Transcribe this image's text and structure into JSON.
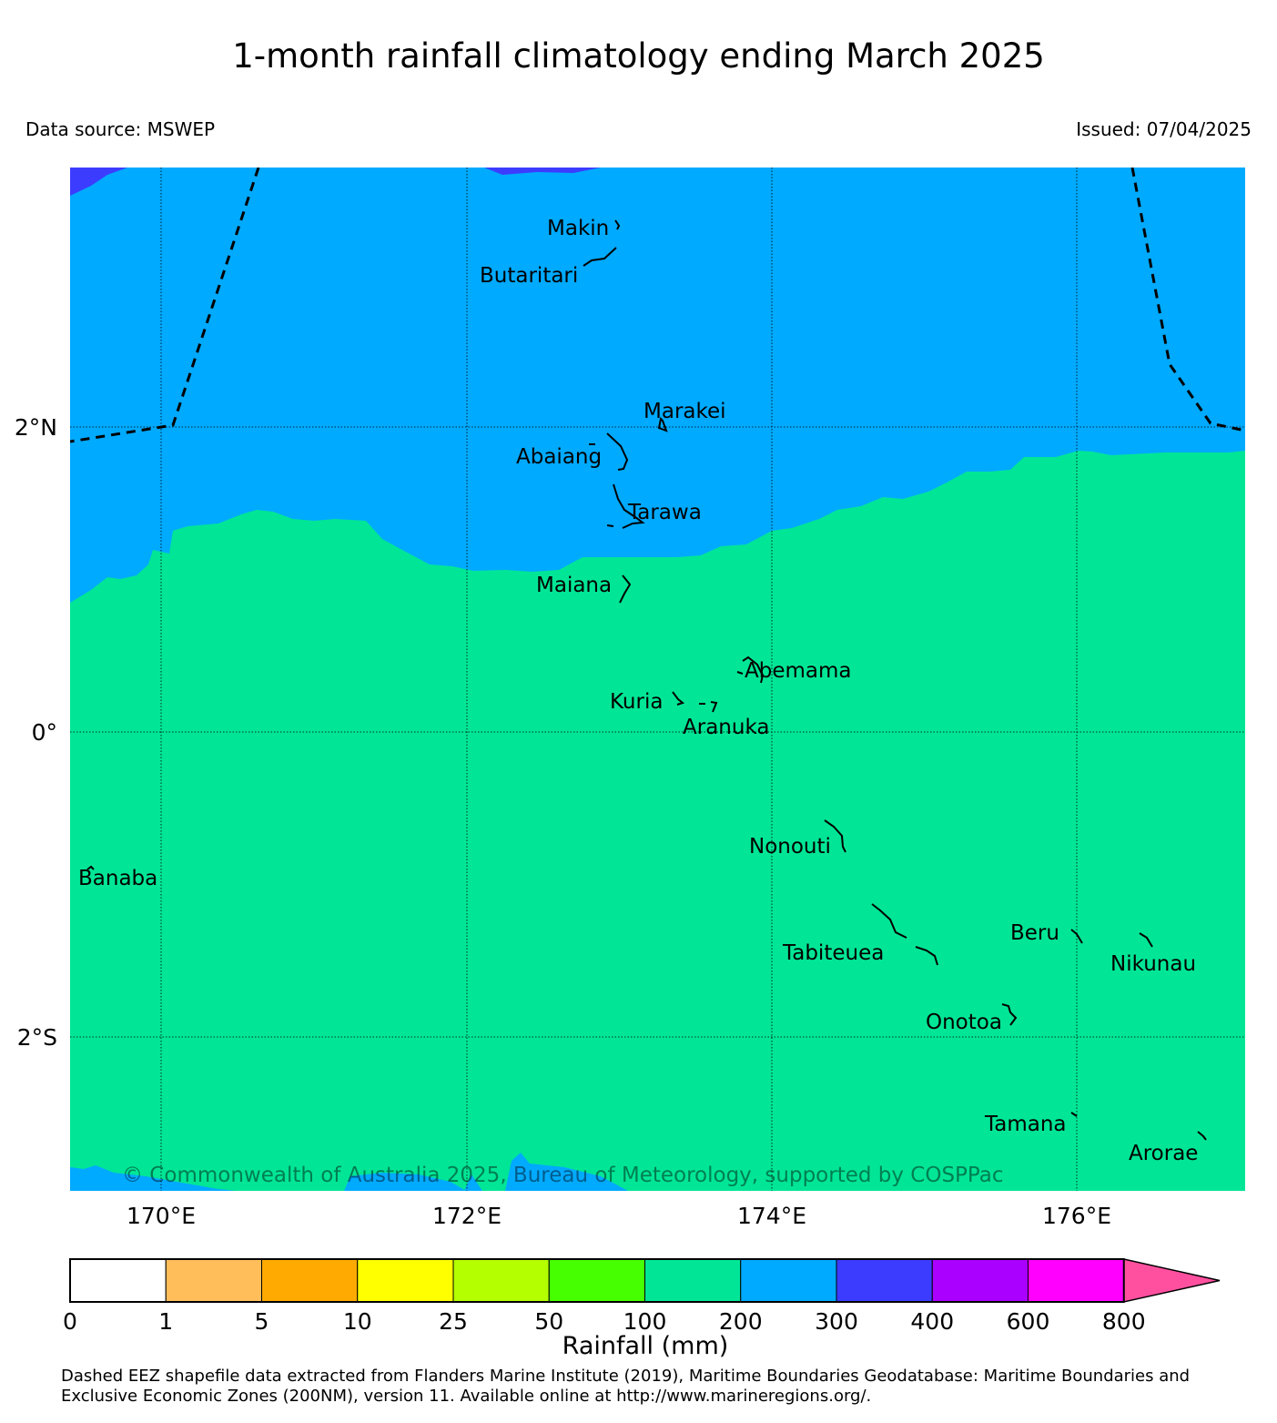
{
  "title": "1-month rainfall climatology ending March 2025",
  "data_source": "Data source: MSWEP",
  "issued": "Issued: 07/04/2025",
  "copyright": "© Commonwealth of Australia 2025, Bureau of Meteorology, supported by COSPPac",
  "lat_labels": [
    "2°N",
    "0°",
    "2°S"
  ],
  "lon_labels": [
    "170°E",
    "172°E",
    "174°E",
    "176°E"
  ],
  "islands": [
    {
      "name": "Makin"
    },
    {
      "name": "Butaritari"
    },
    {
      "name": "Marakei"
    },
    {
      "name": "Abaiang"
    },
    {
      "name": "Tarawa"
    },
    {
      "name": "Maiana"
    },
    {
      "name": "Abemama"
    },
    {
      "name": "Kuria"
    },
    {
      "name": "Aranuka"
    },
    {
      "name": "Nonouti"
    },
    {
      "name": "Banaba"
    },
    {
      "name": "Beru"
    },
    {
      "name": "Tabiteuea"
    },
    {
      "name": "Nikunau"
    },
    {
      "name": "Onotoa"
    },
    {
      "name": "Tamana"
    },
    {
      "name": "Arorae"
    }
  ],
  "rain_colors": {
    "100-200": "#00e696",
    "200-300": "#00aaff",
    "300-400": "#3c3cff"
  },
  "colorbar": {
    "label": "Rainfall (mm)",
    "ticks": [
      "0",
      "1",
      "5",
      "10",
      "25",
      "50",
      "100",
      "200",
      "300",
      "400",
      "600",
      "800"
    ],
    "colors": [
      "#ffffff",
      "#ffbe5a",
      "#ffaa00",
      "#ffff00",
      "#b4ff00",
      "#46ff00",
      "#00e696",
      "#00aaff",
      "#3c3cff",
      "#aa00ff",
      "#ff00ff",
      "#ff50a0"
    ]
  },
  "footnote_line1": "Dashed EEZ shapefile data extracted from Flanders Marine Institute (2019), Maritime Boundaries Geodatabase: Maritime Boundaries and",
  "footnote_line2": "Exclusive Economic Zones (200NM), version 11. Available online at http://www.marineregions.org/."
}
